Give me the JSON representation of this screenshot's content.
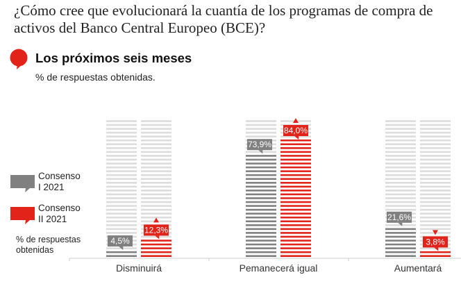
{
  "header": {
    "question": "¿Cómo cree que evolucionará la cuantía de los programas de compra de activos del Banco Central Europeo (BCE)?",
    "subtitle": "Los próximos seis meses",
    "unit_note": "% de respuestas obtenidas.",
    "bubble_icon": "speech-bubble-icon"
  },
  "legend": {
    "items": [
      {
        "label_line1": "Consenso",
        "label_line2": "I 2021",
        "color": "#808080"
      },
      {
        "label_line1": "Consenso",
        "label_line2": "II 2021",
        "color": "#e2231a"
      }
    ],
    "note": "% de respuestas obtenidas"
  },
  "colors": {
    "gray": "#808080",
    "red": "#e2231a",
    "stripe_bg": "#dcdcdc",
    "axis": "#cccccc"
  },
  "chart_data": {
    "type": "bar",
    "title": "Los próximos seis meses",
    "ylabel": "% de respuestas obtenidas",
    "xlabel": "",
    "ylim": [
      0,
      100
    ],
    "categories": [
      "Disminuirá",
      "Pemanecerá igual",
      "Aumentará"
    ],
    "series": [
      {
        "name": "Consenso I 2021",
        "values": [
          4.5,
          73.9,
          21.6
        ],
        "labels": [
          "4,5%",
          "73,9%",
          "21,6%"
        ]
      },
      {
        "name": "Consenso II 2021",
        "values": [
          12.3,
          84.0,
          3.8
        ],
        "labels": [
          "12,3%",
          "84,0%",
          "3,8%"
        ],
        "trend": [
          "up",
          "up",
          "down"
        ]
      }
    ],
    "grid": false,
    "legend": "left"
  }
}
